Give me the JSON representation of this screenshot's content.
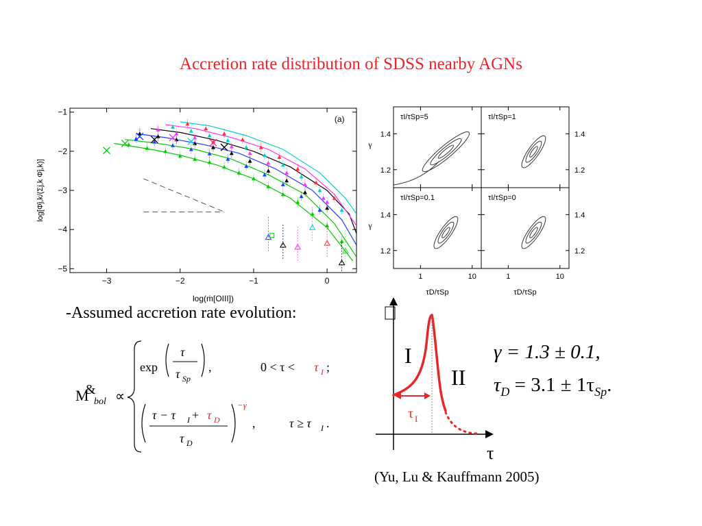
{
  "slide_title": "Accretion rate distribution of SDSS nearby AGNs",
  "assumed_text": "-Assumed accretion rate evolution:",
  "citation": "(Yu, Lu & Kauffmann 2005)",
  "formula": {
    "lhs": "M",
    "lhs_mark": "&",
    "lhs_sub": "bol",
    "proportional": "∝",
    "case1_exp": "exp",
    "case1_num": "τ",
    "case1_den": "τ",
    "case1_den_sub": "Sp",
    "case1_comma": ",",
    "case1_condition": "0 < τ < ",
    "case1_condition_red": "τ",
    "case1_condition_red_sub": "I",
    "case1_end": ";",
    "case2_num": "τ − τ",
    "case2_num_sub": "I",
    "case2_num_plus": " + ",
    "case2_num_red": "τ",
    "case2_num_red_sub": "D",
    "case2_den": "τ",
    "case2_den_sub": "D",
    "case2_power": "−γ",
    "case2_comma": ",",
    "case2_condition": "τ ≥ τ",
    "case2_condition_sub": "I",
    "case2_end": "."
  },
  "fit": {
    "gamma": "γ = 1.3 ± 0.1,",
    "tau_main": "τ",
    "tau_sub1": "D",
    "tau_mid": " = 3.1 ± 1τ",
    "tau_sub2": "Sp",
    "tau_end": "."
  },
  "evolution_diagram": {
    "phase_1": "I",
    "phase_2": "II",
    "tau_label": "τ",
    "tau_i_label": "τ",
    "tau_i_sub": "I",
    "line_color": "#e8262a"
  },
  "chart_data": [
    {
      "type": "line",
      "panel_label": "(a)",
      "xlabel": "log(ṁ[OIII])",
      "ylabel": "log[Φ̄j,k/(Σj,k Φ̄j,k)]",
      "xlim": [
        -3.5,
        0.4
      ],
      "ylim": [
        -5.1,
        -0.9
      ],
      "x_ticks": [
        -3,
        -2,
        -1,
        0
      ],
      "y_ticks": [
        -1,
        -2,
        -3,
        -4,
        -5
      ],
      "series_colors": [
        "#00c800",
        "#00cc00",
        "#1f3fff",
        "#000000",
        "#ff30ff",
        "#00d0d0",
        "#ff3030",
        "#000000",
        "#00ff00"
      ],
      "model_curves": [
        {
          "points": [
            [
              -2.9,
              -1.8
            ],
            [
              -2.4,
              -1.95
            ],
            [
              -2.0,
              -2.1
            ],
            [
              -1.5,
              -2.35
            ],
            [
              -1.0,
              -2.7
            ],
            [
              -0.5,
              -3.2
            ],
            [
              0.0,
              -3.95
            ],
            [
              0.35,
              -4.8
            ]
          ]
        },
        {
          "points": [
            [
              -2.75,
              -1.7
            ],
            [
              -2.3,
              -1.8
            ],
            [
              -1.8,
              -1.95
            ],
            [
              -1.3,
              -2.2
            ],
            [
              -0.8,
              -2.6
            ],
            [
              -0.3,
              -3.1
            ],
            [
              0.1,
              -3.85
            ],
            [
              0.4,
              -4.7
            ]
          ]
        },
        {
          "points": [
            [
              -2.6,
              -1.55
            ],
            [
              -2.2,
              -1.65
            ],
            [
              -1.7,
              -1.82
            ],
            [
              -1.2,
              -2.05
            ],
            [
              -0.7,
              -2.45
            ],
            [
              -0.2,
              -3.0
            ],
            [
              0.2,
              -3.75
            ],
            [
              0.4,
              -4.4
            ]
          ]
        },
        {
          "points": [
            [
              -2.4,
              -1.42
            ],
            [
              -2.0,
              -1.52
            ],
            [
              -1.5,
              -1.72
            ],
            [
              -1.0,
              -2.0
            ],
            [
              -0.5,
              -2.4
            ],
            [
              0.0,
              -3.0
            ],
            [
              0.3,
              -3.6
            ],
            [
              0.4,
              -4.1
            ]
          ]
        },
        {
          "points": [
            [
              -2.2,
              -1.32
            ],
            [
              -1.8,
              -1.42
            ],
            [
              -1.3,
              -1.65
            ],
            [
              -0.8,
              -1.95
            ],
            [
              -0.3,
              -2.45
            ],
            [
              0.1,
              -3.1
            ],
            [
              0.4,
              -3.9
            ]
          ]
        },
        {
          "points": [
            [
              -2.0,
              -1.25
            ],
            [
              -1.6,
              -1.35
            ],
            [
              -1.1,
              -1.6
            ],
            [
              -0.6,
              -1.95
            ],
            [
              -0.1,
              -2.55
            ],
            [
              0.25,
              -3.2
            ],
            [
              0.4,
              -3.6
            ]
          ]
        }
      ],
      "main_series": [
        {
          "name": "",
          "marker": "triangle",
          "points": [
            [
              -2.7,
              -1.83
            ],
            [
              -2.45,
              -1.92
            ],
            [
              -2.2,
              -2.0
            ],
            [
              -2.0,
              -2.12
            ],
            [
              -1.8,
              -2.2
            ],
            [
              -1.6,
              -2.28
            ],
            [
              -1.4,
              -2.4
            ],
            [
              -1.2,
              -2.55
            ],
            [
              -1.0,
              -2.7
            ],
            [
              -0.8,
              -2.9
            ],
            [
              -0.6,
              -3.1
            ],
            [
              -0.4,
              -3.3
            ],
            [
              -0.2,
              -3.6
            ],
            [
              0.0,
              -3.9
            ],
            [
              0.2,
              -4.3
            ]
          ]
        },
        {
          "name": "",
          "marker": "triangle",
          "points": [
            [
              -2.6,
              -1.68
            ],
            [
              -2.35,
              -1.76
            ],
            [
              -2.1,
              -1.85
            ],
            [
              -1.85,
              -1.95
            ],
            [
              -1.6,
              -2.06
            ],
            [
              -1.35,
              -2.2
            ],
            [
              -1.1,
              -2.38
            ],
            [
              -0.85,
              -2.6
            ],
            [
              -0.6,
              -2.85
            ],
            [
              -0.35,
              -3.15
            ],
            [
              -0.1,
              -3.5
            ]
          ]
        },
        {
          "name": "",
          "marker": "triangle",
          "points": [
            [
              -2.55,
              -1.55
            ],
            [
              -2.3,
              -1.62
            ],
            [
              -2.05,
              -1.7
            ],
            [
              -1.8,
              -1.8
            ],
            [
              -1.55,
              -1.9
            ],
            [
              -1.3,
              -2.05
            ],
            [
              -1.05,
              -2.25
            ],
            [
              -0.8,
              -2.5
            ],
            [
              -0.55,
              -2.75
            ],
            [
              -0.3,
              -3.05
            ],
            [
              0.0,
              -3.45
            ]
          ]
        },
        {
          "name": "",
          "marker": "triangle",
          "points": [
            [
              -2.3,
              -1.45
            ],
            [
              -2.05,
              -1.55
            ],
            [
              -1.8,
              -1.65
            ],
            [
              -1.55,
              -1.75
            ],
            [
              -1.3,
              -1.88
            ],
            [
              -1.05,
              -2.05
            ],
            [
              -0.8,
              -2.3
            ],
            [
              -0.55,
              -2.55
            ],
            [
              -0.3,
              -2.85
            ],
            [
              -0.05,
              -3.2
            ],
            [
              0.0,
              -3.3
            ]
          ]
        },
        {
          "name": "",
          "marker": "triangle",
          "points": [
            [
              -2.1,
              -1.38
            ],
            [
              -1.85,
              -1.48
            ],
            [
              -1.6,
              -1.6
            ],
            [
              -1.35,
              -1.72
            ],
            [
              -1.1,
              -1.9
            ],
            [
              -0.85,
              -2.1
            ],
            [
              -0.6,
              -2.35
            ],
            [
              -0.35,
              -2.65
            ],
            [
              -0.1,
              -3.0
            ],
            [
              0.2,
              -3.5
            ]
          ]
        },
        {
          "name": "",
          "marker": "triangle",
          "points": [
            [
              -1.9,
              -1.3
            ],
            [
              -1.65,
              -1.42
            ],
            [
              -1.4,
              -1.55
            ],
            [
              -1.15,
              -1.7
            ],
            [
              -0.9,
              -1.9
            ],
            [
              -0.65,
              -2.15
            ],
            [
              -0.4,
              -2.45
            ],
            [
              -0.15,
              -2.8
            ],
            [
              0.1,
              -3.2
            ]
          ]
        }
      ],
      "crosses": [
        [
          -3.0,
          -1.98
        ],
        [
          -2.75,
          -1.8
        ],
        [
          -2.55,
          -1.62
        ],
        [
          -2.35,
          -1.7
        ],
        [
          -2.1,
          -1.65
        ],
        [
          -1.85,
          -1.75
        ],
        [
          -1.55,
          -1.78
        ],
        [
          -1.4,
          -1.9
        ]
      ],
      "upper_limits": [
        [
          -0.8,
          -4.2
        ],
        [
          -0.6,
          -4.4
        ],
        [
          -0.4,
          -4.45
        ],
        [
          -0.2,
          -3.95
        ],
        [
          0.0,
          -4.35
        ],
        [
          0.2,
          -4.85
        ],
        [
          0.25,
          -4.55
        ]
      ],
      "green_squares": [
        [
          -0.75,
          -4.15
        ]
      ],
      "dashed_lines": [
        {
          "points": [
            [
              -2.5,
              -2.7
            ],
            [
              -1.4,
              -3.55
            ]
          ]
        },
        {
          "points": [
            [
              -2.5,
              -3.55
            ],
            [
              -1.4,
              -3.55
            ]
          ]
        }
      ]
    },
    {
      "type": "contour",
      "panels": [
        {
          "label": "τI/τSp=5",
          "row": 0,
          "col": 0
        },
        {
          "label": "τI/τSp=1",
          "row": 0,
          "col": 1
        },
        {
          "label": "τI/τSp=0.1",
          "row": 1,
          "col": 0
        },
        {
          "label": "τI/τSp=0",
          "row": 1,
          "col": 1
        }
      ],
      "xlabel": "τD/τSp",
      "ylabel": "γ",
      "x_ticks": [
        "1",
        "10"
      ],
      "y_ticks": [
        "1.2",
        "1.4"
      ],
      "x_scale": "log",
      "xlim": [
        0.3,
        15
      ],
      "ylim": [
        1.1,
        1.55
      ]
    }
  ]
}
